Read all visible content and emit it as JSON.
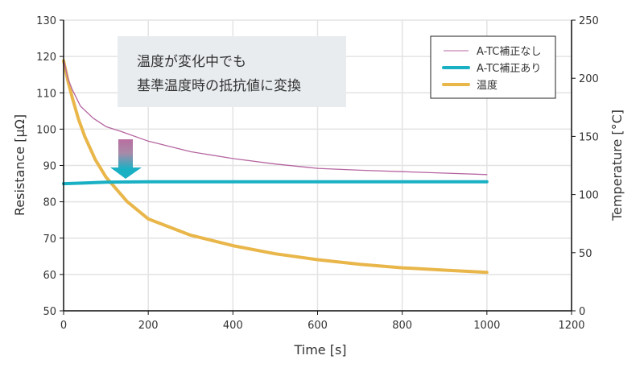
{
  "chart_data": {
    "type": "line",
    "xlabel": "Time [s]",
    "ylabel": "Resistance [µΩ]",
    "y2label": "Temperature [°C]",
    "xlim": [
      0,
      1200
    ],
    "ylim": [
      50,
      130
    ],
    "y2lim": [
      0,
      250
    ],
    "xticks": [
      0,
      200,
      400,
      600,
      800,
      1000,
      1200
    ],
    "yticks": [
      50,
      60,
      70,
      80,
      90,
      100,
      110,
      120,
      130
    ],
    "y2ticks": [
      0,
      50,
      100,
      150,
      200,
      250
    ],
    "grid": true,
    "legend_position": "top-right",
    "annotation": [
      "温度が変化中でも",
      "基準温度時の抵抗値に変換"
    ],
    "series": [
      {
        "name": "A-TC補正なし",
        "axis": "left",
        "color": "#b565a0",
        "x": [
          0,
          10,
          20,
          40,
          70,
          100,
          135,
          200,
          300,
          400,
          500,
          600,
          700,
          800,
          900,
          1000
        ],
        "y": [
          119,
          114,
          111,
          106.3,
          103,
          100.7,
          99.4,
          96.7,
          93.8,
          91.9,
          90.4,
          89.2,
          88.7,
          88.3,
          87.9,
          87.5
        ]
      },
      {
        "name": "A-TC補正あり",
        "axis": "left",
        "color": "#1ab0c4",
        "x": [
          0,
          50,
          100,
          200,
          400,
          600,
          800,
          1000
        ],
        "y": [
          85.0,
          85.2,
          85.4,
          85.5,
          85.5,
          85.5,
          85.5,
          85.5
        ]
      },
      {
        "name": "温度",
        "axis": "right",
        "color": "#e9b64a",
        "x": [
          0,
          10,
          20,
          35,
          50,
          75,
          100,
          150,
          200,
          300,
          400,
          500,
          600,
          700,
          800,
          900,
          1000
        ],
        "y": [
          215,
          198,
          184,
          165,
          150,
          130,
          115,
          94,
          79,
          65,
          56,
          49,
          44,
          40,
          37,
          35,
          33
        ]
      }
    ]
  }
}
